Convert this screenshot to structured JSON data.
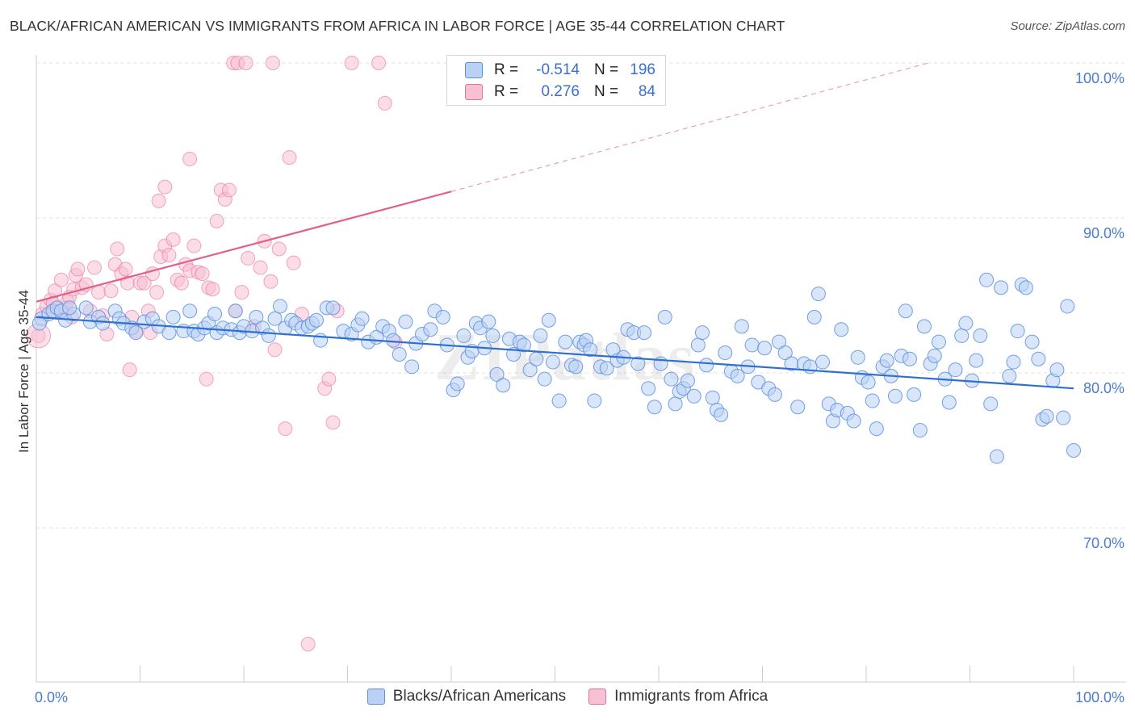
{
  "title": "BLACK/AFRICAN AMERICAN VS IMMIGRANTS FROM AFRICA IN LABOR FORCE | AGE 35-44 CORRELATION CHART",
  "source": "Source: ZipAtlas.com",
  "watermark": "ZIPatlas",
  "legend": {
    "rows": [
      {
        "r_label": "R =",
        "r_value": "-0.514",
        "n_label": "N =",
        "n_value": "196"
      },
      {
        "r_label": "R =",
        "r_value": "0.276",
        "n_label": "N =",
        "n_value": "84"
      }
    ]
  },
  "chart_data": {
    "type": "scatter",
    "title": "BLACK/AFRICAN AMERICAN VS IMMIGRANTS FROM AFRICA IN LABOR FORCE | AGE 35-44 CORRELATION CHART",
    "xlabel": "",
    "ylabel": "In Labor Force | Age 35-44",
    "xlim": [
      0,
      100
    ],
    "ylim": [
      60,
      100
    ],
    "x_tick_labels": [
      "0.0%",
      "100.0%"
    ],
    "y_ticks": [
      70,
      80,
      90,
      100
    ],
    "y_tick_labels": [
      "70.0%",
      "80.0%",
      "90.0%",
      "100.0%"
    ],
    "grid": true,
    "legend_position": "top-center",
    "colors": {
      "blue": "#5b8fe0",
      "blue_fill": "#b9d1f4",
      "pink": "#e8709a",
      "pink_fill": "#f7c0d3"
    },
    "series": [
      {
        "name": "Blacks/African Americans",
        "R": -0.514,
        "N": 196,
        "trend": {
          "x": [
            0,
            100
          ],
          "y": [
            83.6,
            79.0
          ]
        },
        "points": [
          [
            0.5,
            83.5
          ],
          [
            0.3,
            83.2
          ],
          [
            1.2,
            83.8
          ],
          [
            1.6,
            84.0
          ],
          [
            2.0,
            84.2
          ],
          [
            2.4,
            84.0
          ],
          [
            2.8,
            83.4
          ],
          [
            3.6,
            83.8
          ],
          [
            3.2,
            84.2
          ],
          [
            4.8,
            84.2
          ],
          [
            5.2,
            83.3
          ],
          [
            6.0,
            83.6
          ],
          [
            6.4,
            83.2
          ],
          [
            7.6,
            84.0
          ],
          [
            8.0,
            83.5
          ],
          [
            8.4,
            83.2
          ],
          [
            9.2,
            82.9
          ],
          [
            9.6,
            82.6
          ],
          [
            10.4,
            83.3
          ],
          [
            11.2,
            83.5
          ],
          [
            11.8,
            83.0
          ],
          [
            12.8,
            82.6
          ],
          [
            13.2,
            83.6
          ],
          [
            14.2,
            82.7
          ],
          [
            14.8,
            84.0
          ],
          [
            15.2,
            82.7
          ],
          [
            15.6,
            82.5
          ],
          [
            16.2,
            82.9
          ],
          [
            16.6,
            83.2
          ],
          [
            17.2,
            83.8
          ],
          [
            17.4,
            82.6
          ],
          [
            18.0,
            82.9
          ],
          [
            18.8,
            82.8
          ],
          [
            19.2,
            84.0
          ],
          [
            19.6,
            82.6
          ],
          [
            20.0,
            83.0
          ],
          [
            20.8,
            82.7
          ],
          [
            21.2,
            83.6
          ],
          [
            21.8,
            82.9
          ],
          [
            22.4,
            82.4
          ],
          [
            23.0,
            83.5
          ],
          [
            23.5,
            84.3
          ],
          [
            24.0,
            82.9
          ],
          [
            24.6,
            83.4
          ],
          [
            25.0,
            83.2
          ],
          [
            25.6,
            82.9
          ],
          [
            26.2,
            83.0
          ],
          [
            26.6,
            83.2
          ],
          [
            27.0,
            83.4
          ],
          [
            27.4,
            82.1
          ],
          [
            28.0,
            84.2
          ],
          [
            28.6,
            84.2
          ],
          [
            29.6,
            82.7
          ],
          [
            30.4,
            82.5
          ],
          [
            31.0,
            83.1
          ],
          [
            31.4,
            83.5
          ],
          [
            32.0,
            82.0
          ],
          [
            32.8,
            82.3
          ],
          [
            33.4,
            83.0
          ],
          [
            34.0,
            82.7
          ],
          [
            34.4,
            82.1
          ],
          [
            35.0,
            81.2
          ],
          [
            35.6,
            83.3
          ],
          [
            36.2,
            80.4
          ],
          [
            36.6,
            81.9
          ],
          [
            37.2,
            82.5
          ],
          [
            38.0,
            82.8
          ],
          [
            38.4,
            84.0
          ],
          [
            39.2,
            83.6
          ],
          [
            39.6,
            81.8
          ],
          [
            40.2,
            78.9
          ],
          [
            40.6,
            79.3
          ],
          [
            41.2,
            82.4
          ],
          [
            41.6,
            81.0
          ],
          [
            42.0,
            81.4
          ],
          [
            42.4,
            83.2
          ],
          [
            42.8,
            82.9
          ],
          [
            43.2,
            81.6
          ],
          [
            43.6,
            83.3
          ],
          [
            44.0,
            82.4
          ],
          [
            44.4,
            79.9
          ],
          [
            45.0,
            79.2
          ],
          [
            45.6,
            82.2
          ],
          [
            46.0,
            81.2
          ],
          [
            46.6,
            82.0
          ],
          [
            47.0,
            81.8
          ],
          [
            47.6,
            80.2
          ],
          [
            48.2,
            80.9
          ],
          [
            48.6,
            82.4
          ],
          [
            49.0,
            79.6
          ],
          [
            49.4,
            83.4
          ],
          [
            49.8,
            80.7
          ],
          [
            50.4,
            78.2
          ],
          [
            51.0,
            82.0
          ],
          [
            51.6,
            80.5
          ],
          [
            52.0,
            80.4
          ],
          [
            52.4,
            82.0
          ],
          [
            52.8,
            81.8
          ],
          [
            53.0,
            82.1
          ],
          [
            53.4,
            81.5
          ],
          [
            53.8,
            78.2
          ],
          [
            54.4,
            80.4
          ],
          [
            55.0,
            80.3
          ],
          [
            55.6,
            81.5
          ],
          [
            56.0,
            80.8
          ],
          [
            56.6,
            81.0
          ],
          [
            57.0,
            82.8
          ],
          [
            57.6,
            82.6
          ],
          [
            58.0,
            80.6
          ],
          [
            58.6,
            82.6
          ],
          [
            59.0,
            79.0
          ],
          [
            59.6,
            77.8
          ],
          [
            60.2,
            80.6
          ],
          [
            60.6,
            83.6
          ],
          [
            61.2,
            79.6
          ],
          [
            61.6,
            78.0
          ],
          [
            62.0,
            78.8
          ],
          [
            62.4,
            79.0
          ],
          [
            62.8,
            79.5
          ],
          [
            63.4,
            78.5
          ],
          [
            63.8,
            81.8
          ],
          [
            64.2,
            82.6
          ],
          [
            64.6,
            80.5
          ],
          [
            65.2,
            78.4
          ],
          [
            65.6,
            77.6
          ],
          [
            66.0,
            77.3
          ],
          [
            66.4,
            81.3
          ],
          [
            67.0,
            80.1
          ],
          [
            67.6,
            79.8
          ],
          [
            68.0,
            83.0
          ],
          [
            68.6,
            80.4
          ],
          [
            69.0,
            81.8
          ],
          [
            69.6,
            79.4
          ],
          [
            70.2,
            81.6
          ],
          [
            70.6,
            79.0
          ],
          [
            71.2,
            78.6
          ],
          [
            71.6,
            82.0
          ],
          [
            72.2,
            81.3
          ],
          [
            72.8,
            80.6
          ],
          [
            73.4,
            77.8
          ],
          [
            74.0,
            80.6
          ],
          [
            74.6,
            80.4
          ],
          [
            75.0,
            83.6
          ],
          [
            75.4,
            85.1
          ],
          [
            75.8,
            80.7
          ],
          [
            76.4,
            78.0
          ],
          [
            76.8,
            76.9
          ],
          [
            77.2,
            77.6
          ],
          [
            77.6,
            82.8
          ],
          [
            78.2,
            77.4
          ],
          [
            78.8,
            76.9
          ],
          [
            79.2,
            81.0
          ],
          [
            79.6,
            79.7
          ],
          [
            80.2,
            79.4
          ],
          [
            80.6,
            78.2
          ],
          [
            81.0,
            76.4
          ],
          [
            81.6,
            80.4
          ],
          [
            82.0,
            80.8
          ],
          [
            82.4,
            79.8
          ],
          [
            82.8,
            78.5
          ],
          [
            83.4,
            81.1
          ],
          [
            83.8,
            84.0
          ],
          [
            84.2,
            80.9
          ],
          [
            84.6,
            78.6
          ],
          [
            85.2,
            76.3
          ],
          [
            85.6,
            83.0
          ],
          [
            86.2,
            80.6
          ],
          [
            86.6,
            81.1
          ],
          [
            87.0,
            82.0
          ],
          [
            87.6,
            79.6
          ],
          [
            88.0,
            78.1
          ],
          [
            88.6,
            80.2
          ],
          [
            89.2,
            82.4
          ],
          [
            89.6,
            83.2
          ],
          [
            90.2,
            79.5
          ],
          [
            90.6,
            80.8
          ],
          [
            91.0,
            82.4
          ],
          [
            91.6,
            86.0
          ],
          [
            92.0,
            78.0
          ],
          [
            92.6,
            74.6
          ],
          [
            93.0,
            85.5
          ],
          [
            93.8,
            79.8
          ],
          [
            94.2,
            80.7
          ],
          [
            94.6,
            82.7
          ],
          [
            95.0,
            85.7
          ],
          [
            95.4,
            85.5
          ],
          [
            96.0,
            82.0
          ],
          [
            96.6,
            80.9
          ],
          [
            97.0,
            77.0
          ],
          [
            97.4,
            77.2
          ],
          [
            98.0,
            79.5
          ],
          [
            98.4,
            80.2
          ],
          [
            99.0,
            77.1
          ],
          [
            99.4,
            84.3
          ],
          [
            100.0,
            75.0
          ]
        ]
      },
      {
        "name": "Immigrants from Africa",
        "R": 0.276,
        "N": 84,
        "trend": {
          "x": [
            0,
            40
          ],
          "y": [
            84.6,
            91.7
          ]
        },
        "trend_dashed": {
          "x": [
            40,
            86
          ],
          "y": [
            91.7,
            100
          ]
        },
        "points": [
          [
            0.2,
            82.4
          ],
          [
            0.6,
            83.8
          ],
          [
            1.0,
            84.3
          ],
          [
            1.4,
            84.7
          ],
          [
            1.6,
            84.5
          ],
          [
            1.8,
            85.3
          ],
          [
            2.0,
            83.9
          ],
          [
            2.4,
            86.0
          ],
          [
            2.8,
            84.2
          ],
          [
            3.0,
            84.6
          ],
          [
            3.2,
            84.9
          ],
          [
            3.4,
            83.6
          ],
          [
            3.6,
            85.4
          ],
          [
            3.8,
            86.3
          ],
          [
            4.0,
            86.7
          ],
          [
            4.4,
            85.5
          ],
          [
            4.8,
            85.7
          ],
          [
            5.2,
            84.0
          ],
          [
            5.6,
            86.8
          ],
          [
            6.0,
            85.2
          ],
          [
            6.4,
            83.7
          ],
          [
            6.8,
            82.5
          ],
          [
            7.2,
            85.3
          ],
          [
            7.6,
            87.0
          ],
          [
            7.8,
            88.0
          ],
          [
            8.2,
            86.4
          ],
          [
            8.6,
            86.7
          ],
          [
            8.8,
            85.8
          ],
          [
            9.2,
            83.6
          ],
          [
            9.6,
            82.7
          ],
          [
            10.0,
            85.8
          ],
          [
            10.4,
            85.8
          ],
          [
            10.8,
            84.0
          ],
          [
            11.2,
            86.4
          ],
          [
            11.6,
            85.2
          ],
          [
            12.0,
            87.5
          ],
          [
            12.4,
            88.2
          ],
          [
            12.8,
            87.6
          ],
          [
            13.2,
            88.6
          ],
          [
            13.6,
            86.0
          ],
          [
            14.0,
            85.8
          ],
          [
            14.4,
            87.0
          ],
          [
            14.8,
            86.6
          ],
          [
            15.2,
            88.2
          ],
          [
            15.6,
            86.5
          ],
          [
            16.0,
            86.4
          ],
          [
            16.6,
            85.5
          ],
          [
            17.0,
            85.4
          ],
          [
            17.4,
            89.8
          ],
          [
            17.8,
            91.8
          ],
          [
            18.2,
            91.2
          ],
          [
            18.6,
            91.8
          ],
          [
            19.2,
            84.0
          ],
          [
            19.8,
            85.2
          ],
          [
            20.4,
            87.4
          ],
          [
            21.0,
            83.0
          ],
          [
            21.6,
            86.8
          ],
          [
            22.0,
            88.5
          ],
          [
            22.6,
            85.9
          ],
          [
            23.0,
            81.5
          ],
          [
            23.4,
            88.0
          ],
          [
            24.0,
            76.4
          ],
          [
            24.4,
            93.9
          ],
          [
            24.8,
            87.1
          ],
          [
            25.6,
            83.8
          ],
          [
            26.2,
            62.5
          ],
          [
            27.8,
            79.0
          ],
          [
            28.2,
            79.6
          ],
          [
            28.6,
            76.8
          ],
          [
            29.0,
            84.0
          ],
          [
            11.8,
            91.1
          ],
          [
            12.4,
            92.0
          ],
          [
            14.8,
            93.8
          ],
          [
            19.0,
            100.0
          ],
          [
            19.4,
            100.0
          ],
          [
            20.2,
            100.0
          ],
          [
            22.8,
            100.0
          ],
          [
            30.4,
            100.0
          ],
          [
            33.0,
            100.0
          ],
          [
            33.6,
            97.4
          ],
          [
            34.6,
            82.0
          ],
          [
            11.0,
            82.6
          ],
          [
            9.0,
            80.2
          ],
          [
            16.4,
            79.6
          ]
        ]
      }
    ]
  }
}
